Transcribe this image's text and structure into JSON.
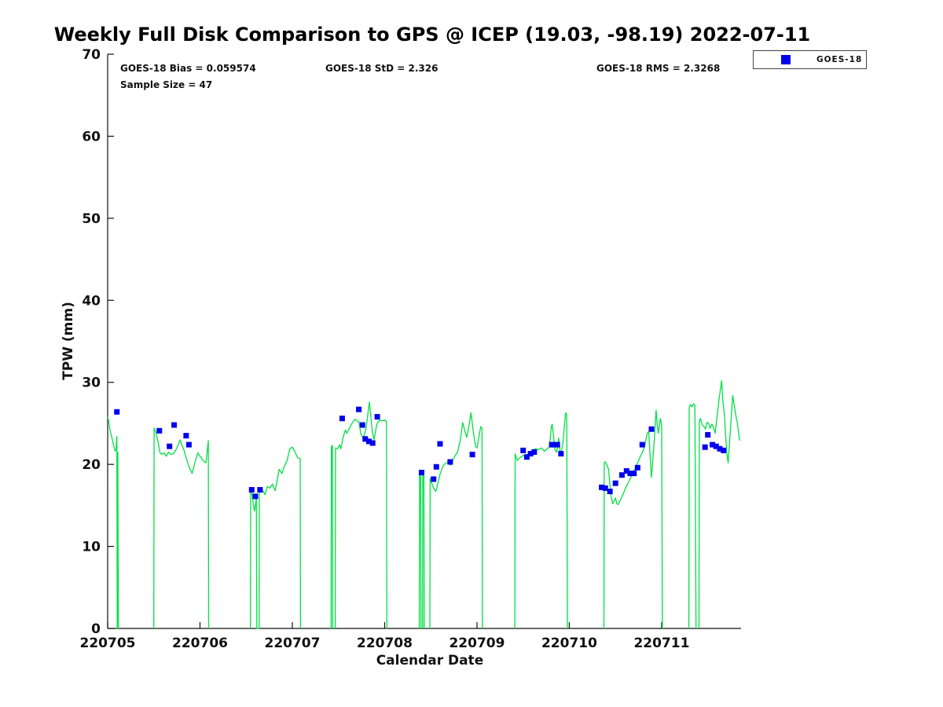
{
  "title": "Weekly Full Disk Comparison to GPS @ ICEP (19.03, -98.19) 2022-07-11",
  "stats": {
    "bias": "GOES-18 Bias = 0.059574",
    "std": "GOES-18 StD = 2.326",
    "rms": "GOES-18 RMS = 2.3268",
    "sample": "Sample Size = 47"
  },
  "legend": {
    "label": "GOES-18"
  },
  "colors": {
    "line": "#00e045",
    "marker": "#0000ee",
    "axis": "#111111"
  },
  "chart_data": {
    "type": "line",
    "title": "Weekly Full Disk Comparison to GPS @ ICEP (19.03, -98.19) 2022-07-11",
    "xlabel": "Calendar Date",
    "ylabel": "TPW (mm)",
    "xlim": [
      0,
      6.86
    ],
    "ylim": [
      0,
      70
    ],
    "grid": false,
    "legend_position": "top-right-outside",
    "x_ticks": [
      {
        "pos": 0,
        "label": "220705"
      },
      {
        "pos": 1,
        "label": "220706"
      },
      {
        "pos": 2,
        "label": "220707"
      },
      {
        "pos": 3,
        "label": "220708"
      },
      {
        "pos": 4,
        "label": "220709"
      },
      {
        "pos": 5,
        "label": "220710"
      },
      {
        "pos": 6,
        "label": "220711"
      }
    ],
    "y_ticks": [
      0,
      10,
      20,
      30,
      40,
      50,
      60,
      70
    ],
    "series": [
      {
        "name": "GPS",
        "type": "line",
        "points": [
          [
            0.0,
            25.8
          ],
          [
            0.01,
            25.3
          ],
          [
            0.025,
            24.2
          ],
          [
            0.045,
            23.3
          ],
          [
            0.065,
            22.3
          ],
          [
            0.08,
            21.6
          ],
          [
            0.09,
            21.8
          ],
          [
            0.1,
            23.4
          ],
          [
            0.104,
            0
          ],
          [
            0.11,
            21.5
          ],
          [
            0.116,
            0
          ],
          null,
          [
            0.5,
            0
          ],
          [
            0.503,
            24.4
          ],
          [
            0.52,
            24.0
          ],
          [
            0.545,
            22.8
          ],
          [
            0.565,
            21.5
          ],
          [
            0.585,
            21.2
          ],
          [
            0.61,
            21.4
          ],
          [
            0.635,
            21.0
          ],
          [
            0.66,
            21.5
          ],
          [
            0.685,
            21.2
          ],
          [
            0.71,
            21.3
          ],
          [
            0.735,
            21.7
          ],
          [
            0.765,
            22.4
          ],
          [
            0.785,
            23.0
          ],
          [
            0.805,
            22.3
          ],
          [
            0.825,
            21.8
          ],
          [
            0.855,
            20.6
          ],
          [
            0.885,
            19.6
          ],
          [
            0.915,
            18.9
          ],
          [
            0.945,
            20.2
          ],
          [
            0.975,
            21.4
          ],
          [
            1.005,
            20.9
          ],
          [
            1.04,
            20.4
          ],
          [
            1.065,
            20.2
          ],
          [
            1.09,
            22.9
          ],
          [
            1.094,
            0
          ],
          null,
          [
            1.546,
            0
          ],
          [
            1.549,
            17.0
          ],
          [
            1.56,
            16.6
          ],
          [
            1.575,
            15.3
          ],
          [
            1.59,
            14.3
          ],
          [
            1.6,
            15.0
          ],
          [
            1.61,
            15.9
          ],
          [
            1.615,
            0
          ],
          [
            1.64,
            0
          ],
          [
            1.643,
            17.0
          ],
          [
            1.66,
            16.7
          ],
          [
            1.675,
            16.9
          ],
          [
            1.705,
            16.3
          ],
          [
            1.73,
            17.3
          ],
          [
            1.755,
            17.1
          ],
          [
            1.785,
            17.6
          ],
          [
            1.815,
            16.8
          ],
          [
            1.858,
            19.4
          ],
          [
            1.887,
            18.9
          ],
          [
            1.915,
            19.8
          ],
          [
            1.945,
            20.5
          ],
          [
            1.972,
            21.9
          ],
          [
            2.0,
            22.1
          ],
          [
            2.03,
            21.5
          ],
          [
            2.058,
            20.8
          ],
          [
            2.085,
            20.7
          ],
          [
            2.089,
            0
          ],
          null,
          [
            2.42,
            0
          ],
          [
            2.423,
            22.2
          ],
          [
            2.434,
            22.3
          ],
          [
            2.437,
            0
          ],
          null,
          [
            2.465,
            0
          ],
          [
            2.468,
            22.0
          ],
          [
            2.49,
            21.9
          ],
          [
            2.51,
            22.4
          ],
          [
            2.525,
            21.9
          ],
          [
            2.55,
            23.3
          ],
          [
            2.575,
            24.2
          ],
          [
            2.59,
            23.8
          ],
          [
            2.615,
            24.3
          ],
          [
            2.645,
            25.0
          ],
          [
            2.68,
            25.5
          ],
          [
            2.7,
            25.3
          ],
          [
            2.72,
            25.2
          ],
          [
            2.745,
            23.6
          ],
          [
            2.77,
            23.2
          ],
          [
            2.8,
            24.5
          ],
          [
            2.835,
            27.6
          ],
          [
            2.865,
            24.1
          ],
          [
            2.885,
            23.0
          ],
          [
            2.915,
            24.9
          ],
          [
            2.945,
            25.4
          ],
          [
            2.975,
            25.3
          ],
          [
            3.005,
            25.4
          ],
          [
            3.02,
            25.2
          ],
          [
            3.024,
            0
          ],
          null,
          [
            3.375,
            0
          ],
          [
            3.378,
            19.2
          ],
          [
            3.39,
            19.3
          ],
          [
            3.393,
            0
          ],
          null,
          [
            3.41,
            0
          ],
          [
            3.413,
            19.2
          ],
          [
            3.425,
            19.0
          ],
          [
            3.428,
            0
          ],
          null,
          [
            3.49,
            0
          ],
          [
            3.493,
            18.3
          ],
          [
            3.51,
            17.7
          ],
          [
            3.535,
            17.0
          ],
          [
            3.555,
            16.7
          ],
          [
            3.58,
            17.8
          ],
          [
            3.6,
            18.8
          ],
          [
            3.625,
            19.6
          ],
          [
            3.645,
            20.0
          ],
          [
            3.67,
            20.2
          ],
          [
            3.695,
            20.3
          ],
          [
            3.715,
            19.9
          ],
          [
            3.74,
            20.6
          ],
          [
            3.765,
            21.1
          ],
          [
            3.79,
            21.5
          ],
          [
            3.82,
            23.0
          ],
          [
            3.845,
            25.1
          ],
          [
            3.87,
            24.0
          ],
          [
            3.89,
            23.3
          ],
          [
            3.915,
            24.8
          ],
          [
            3.935,
            26.3
          ],
          [
            3.96,
            24.0
          ],
          [
            3.985,
            22.2
          ],
          [
            4.0,
            22.0
          ],
          [
            4.04,
            24.6
          ],
          [
            4.055,
            24.4
          ],
          [
            4.059,
            0
          ],
          null,
          [
            4.41,
            0
          ],
          [
            4.413,
            21.3
          ],
          [
            4.435,
            20.5
          ],
          [
            4.465,
            20.8
          ],
          [
            4.5,
            21.1
          ],
          [
            4.53,
            21.0
          ],
          [
            4.565,
            21.4
          ],
          [
            4.6,
            21.7
          ],
          [
            4.63,
            21.9
          ],
          [
            4.665,
            21.8
          ],
          [
            4.7,
            22.0
          ],
          [
            4.73,
            21.6
          ],
          [
            4.76,
            21.9
          ],
          [
            4.785,
            22.1
          ],
          [
            4.805,
            24.6
          ],
          [
            4.815,
            24.9
          ],
          [
            4.845,
            21.7
          ],
          [
            4.865,
            21.5
          ],
          [
            4.885,
            23.2
          ],
          [
            4.905,
            21.1
          ],
          [
            4.93,
            22.5
          ],
          [
            4.96,
            26.3
          ],
          [
            4.972,
            26.0
          ],
          [
            4.98,
            0
          ],
          null,
          [
            5.375,
            0
          ],
          [
            5.378,
            20.2
          ],
          [
            5.39,
            20.3
          ],
          [
            5.405,
            20.0
          ],
          [
            5.425,
            19.4
          ],
          [
            5.44,
            17.5
          ],
          [
            5.455,
            16.0
          ],
          [
            5.47,
            15.2
          ],
          [
            5.485,
            15.5
          ],
          [
            5.5,
            15.9
          ],
          [
            5.515,
            15.2
          ],
          [
            5.53,
            15.1
          ],
          [
            5.555,
            15.7
          ],
          [
            5.58,
            16.3
          ],
          [
            5.61,
            17.1
          ],
          [
            5.64,
            17.8
          ],
          [
            5.665,
            18.4
          ],
          [
            5.69,
            19.0
          ],
          [
            5.72,
            19.7
          ],
          [
            5.745,
            20.3
          ],
          [
            5.77,
            21.0
          ],
          [
            5.785,
            21.3
          ],
          [
            5.8,
            21.7
          ],
          [
            5.815,
            22.2
          ],
          [
            5.845,
            23.8
          ],
          [
            5.86,
            24.0
          ],
          [
            5.875,
            21.0
          ],
          [
            5.89,
            18.4
          ],
          [
            5.92,
            23.0
          ],
          [
            5.94,
            26.6
          ],
          [
            5.955,
            24.5
          ],
          [
            5.965,
            23.8
          ],
          [
            5.985,
            25.6
          ],
          [
            6.0,
            24.8
          ],
          [
            6.008,
            0
          ],
          null,
          [
            6.295,
            0
          ],
          [
            6.298,
            26.9
          ],
          [
            6.31,
            27.3
          ],
          [
            6.33,
            27.0
          ],
          [
            6.345,
            27.4
          ],
          [
            6.36,
            27.2
          ],
          [
            6.372,
            0
          ],
          null,
          [
            6.405,
            0
          ],
          [
            6.408,
            25.3
          ],
          [
            6.42,
            25.6
          ],
          [
            6.44,
            24.8
          ],
          [
            6.46,
            24.6
          ],
          [
            6.475,
            24.3
          ],
          [
            6.49,
            25.1
          ],
          [
            6.51,
            25.0
          ],
          [
            6.525,
            24.4
          ],
          [
            6.545,
            24.9
          ],
          [
            6.565,
            24.4
          ],
          [
            6.58,
            23.8
          ],
          [
            6.62,
            27.8
          ],
          [
            6.65,
            30.2
          ],
          [
            6.665,
            27.5
          ],
          [
            6.68,
            26.0
          ],
          [
            6.69,
            24.1
          ],
          [
            6.705,
            21.5
          ],
          [
            6.72,
            20.2
          ],
          [
            6.75,
            25.1
          ],
          [
            6.77,
            28.4
          ],
          [
            6.8,
            26.2
          ],
          [
            6.81,
            25.6
          ],
          [
            6.82,
            25.1
          ],
          [
            6.845,
            22.9
          ]
        ]
      },
      {
        "name": "GOES-18",
        "type": "scatter",
        "marker": "square",
        "points": [
          [
            0.1,
            26.4
          ],
          [
            0.56,
            24.1
          ],
          [
            0.67,
            22.2
          ],
          [
            0.72,
            24.8
          ],
          [
            0.85,
            23.5
          ],
          [
            0.88,
            22.4
          ],
          [
            1.56,
            16.9
          ],
          [
            1.6,
            16.1
          ],
          [
            1.65,
            16.9
          ],
          [
            2.54,
            25.6
          ],
          [
            2.72,
            26.7
          ],
          [
            2.76,
            24.8
          ],
          [
            2.79,
            23.1
          ],
          [
            2.83,
            22.8
          ],
          [
            2.87,
            22.6
          ],
          [
            2.92,
            25.8
          ],
          [
            3.4,
            19.0
          ],
          [
            3.53,
            18.2
          ],
          [
            3.56,
            19.7
          ],
          [
            3.6,
            22.5
          ],
          [
            3.71,
            20.3
          ],
          [
            3.95,
            21.2
          ],
          [
            4.5,
            21.7
          ],
          [
            4.54,
            20.9
          ],
          [
            4.58,
            21.3
          ],
          [
            4.62,
            21.5
          ],
          [
            4.81,
            22.4
          ],
          [
            4.84,
            22.4
          ],
          [
            4.87,
            22.4
          ],
          [
            4.91,
            21.3
          ],
          [
            5.35,
            17.2
          ],
          [
            5.39,
            17.1
          ],
          [
            5.44,
            16.7
          ],
          [
            5.5,
            17.7
          ],
          [
            5.57,
            18.7
          ],
          [
            5.62,
            19.2
          ],
          [
            5.66,
            18.9
          ],
          [
            5.7,
            18.9
          ],
          [
            5.74,
            19.6
          ],
          [
            5.79,
            22.4
          ],
          [
            5.89,
            24.3
          ],
          [
            6.47,
            22.1
          ],
          [
            6.5,
            23.6
          ],
          [
            6.55,
            22.4
          ],
          [
            6.59,
            22.2
          ],
          [
            6.63,
            21.9
          ],
          [
            6.67,
            21.7
          ]
        ]
      }
    ]
  }
}
